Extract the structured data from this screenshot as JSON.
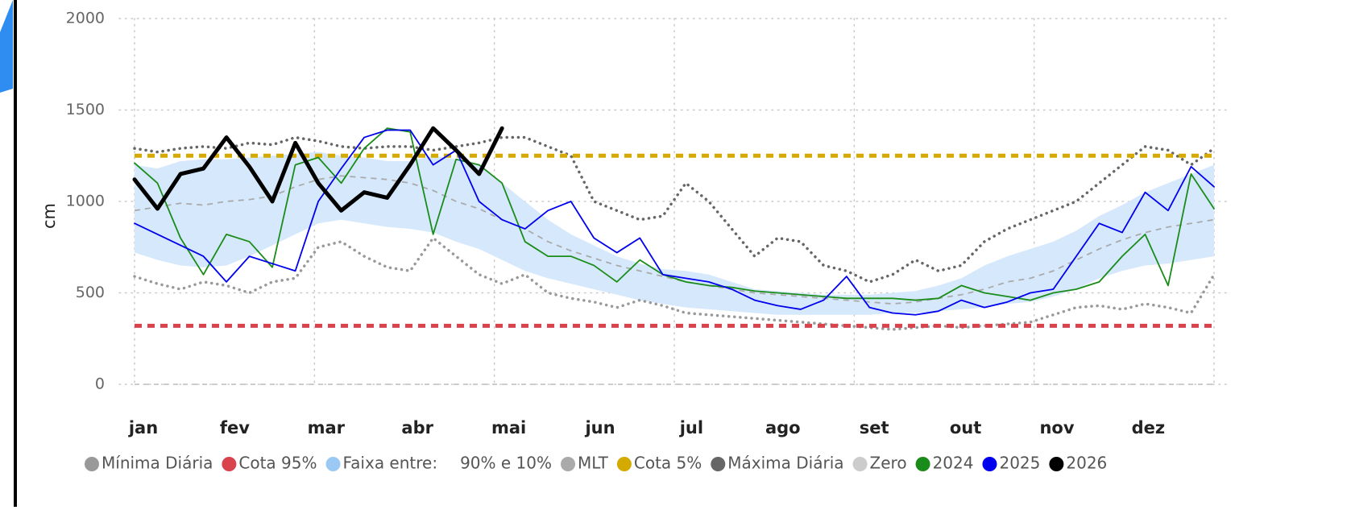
{
  "chart_data": {
    "type": "line",
    "y_label": "cm",
    "ylim": [
      0,
      2000
    ],
    "yticks": [
      0,
      500,
      1000,
      1500,
      2000
    ],
    "grid": true,
    "categories": [
      "jan",
      null,
      null,
      null,
      "fev",
      null,
      null,
      null,
      "mar",
      null,
      null,
      null,
      "abr",
      null,
      null,
      null,
      "mai",
      null,
      null,
      null,
      "jun",
      null,
      null,
      null,
      "jul",
      null,
      null,
      null,
      "ago",
      null,
      null,
      null,
      "set",
      null,
      null,
      null,
      "out",
      null,
      null,
      null,
      "nov",
      null,
      null,
      null,
      "dez",
      null,
      null,
      null
    ],
    "series": [
      {
        "name": "Mínima Diária",
        "color": "#999999",
        "line_style": "dotted",
        "values": [
          590,
          550,
          520,
          560,
          540,
          500,
          560,
          580,
          750,
          780,
          700,
          640,
          620,
          800,
          700,
          600,
          550,
          600,
          500,
          470,
          450,
          420,
          460,
          430,
          390,
          380,
          370,
          360,
          350,
          340,
          330,
          320,
          310,
          300,
          310,
          320,
          310,
          320,
          330,
          340,
          380,
          420,
          430,
          410,
          440,
          420,
          390,
          600
        ]
      },
      {
        "name": "Cota 95%",
        "color": "#d9434e",
        "line_style": "hline",
        "value": 320
      },
      {
        "name": "Faixa entre:",
        "range_label": "90% e 10%",
        "color": "#d6e8fb",
        "legend_color": "#9cc9f3",
        "line_style": "band",
        "upper": [
          1200,
          1180,
          1220,
          1230,
          1230,
          1240,
          1250,
          1260,
          1270,
          1250,
          1240,
          1220,
          1220,
          1250,
          1230,
          1200,
          1100,
          1000,
          900,
          820,
          760,
          700,
          660,
          630,
          620,
          600,
          560,
          520,
          510,
          500,
          490,
          490,
          490,
          500,
          510,
          540,
          580,
          650,
          700,
          740,
          780,
          840,
          920,
          980,
          1050,
          1100,
          1150,
          1200
        ],
        "lower": [
          720,
          680,
          650,
          640,
          650,
          700,
          760,
          820,
          880,
          900,
          880,
          860,
          850,
          830,
          780,
          740,
          680,
          620,
          580,
          550,
          520,
          490,
          460,
          440,
          420,
          410,
          400,
          390,
          380,
          380,
          380,
          380,
          380,
          390,
          390,
          400,
          410,
          420,
          440,
          450,
          480,
          520,
          580,
          620,
          650,
          660,
          680,
          700
        ]
      },
      {
        "name": "MLT",
        "color": "#aaaaaa",
        "line_style": "dashed",
        "values": [
          950,
          970,
          990,
          980,
          1000,
          1010,
          1030,
          1080,
          1120,
          1140,
          1130,
          1120,
          1100,
          1060,
          1000,
          960,
          900,
          850,
          780,
          730,
          690,
          650,
          620,
          590,
          560,
          540,
          520,
          500,
          490,
          480,
          470,
          460,
          450,
          440,
          450,
          470,
          490,
          520,
          560,
          580,
          620,
          680,
          740,
          790,
          830,
          860,
          880,
          900
        ]
      },
      {
        "name": "Cota 5%",
        "color": "#d4aa00",
        "line_style": "hline",
        "value": 1250
      },
      {
        "name": "Máxima Diária",
        "color": "#666666",
        "line_style": "dotted",
        "values": [
          1290,
          1270,
          1290,
          1300,
          1290,
          1320,
          1310,
          1350,
          1330,
          1300,
          1290,
          1300,
          1300,
          1280,
          1300,
          1320,
          1350,
          1350,
          1300,
          1250,
          1000,
          950,
          900,
          920,
          1100,
          1000,
          850,
          700,
          800,
          780,
          650,
          620,
          560,
          600,
          680,
          620,
          650,
          780,
          850,
          900,
          950,
          1000,
          1100,
          1200,
          1300,
          1280,
          1200,
          1290
        ]
      },
      {
        "name": "Zero",
        "color": "#cccccc",
        "line_style": "hline",
        "value": 0
      },
      {
        "name": "2024",
        "color": "#1a8c1a",
        "line_style": "solid",
        "values": [
          1210,
          1100,
          800,
          600,
          820,
          780,
          640,
          1200,
          1240,
          1100,
          1290,
          1400,
          1380,
          820,
          1230,
          1200,
          1100,
          780,
          700,
          700,
          650,
          560,
          680,
          600,
          560,
          540,
          530,
          510,
          500,
          490,
          480,
          470,
          470,
          470,
          460,
          470,
          540,
          500,
          480,
          460,
          500,
          520,
          560,
          700,
          820,
          540,
          1150,
          960
        ]
      },
      {
        "name": "2025",
        "color": "#0000ee",
        "line_style": "solid",
        "values": [
          880,
          820,
          760,
          700,
          560,
          700,
          660,
          620,
          1000,
          1180,
          1350,
          1390,
          1390,
          1200,
          1280,
          1000,
          900,
          850,
          950,
          1000,
          800,
          720,
          800,
          600,
          580,
          560,
          520,
          460,
          430,
          410,
          460,
          590,
          420,
          390,
          380,
          400,
          460,
          420,
          450,
          500,
          520,
          700,
          880,
          830,
          1050,
          950,
          1190,
          1080
        ]
      },
      {
        "name": "2026",
        "color": "#000000",
        "line_style": "bold",
        "values": [
          1120,
          960,
          1150,
          1180,
          1350,
          1190,
          1000,
          1320,
          1100,
          950,
          1050,
          1020,
          1200,
          1400,
          1280,
          1150,
          1400,
          null,
          null,
          null,
          null,
          null,
          null,
          null,
          null,
          null,
          null,
          null,
          null,
          null,
          null,
          null,
          null,
          null,
          null,
          null,
          null,
          null,
          null,
          null,
          null,
          null,
          null,
          null,
          null,
          null,
          null,
          null
        ]
      }
    ]
  }
}
